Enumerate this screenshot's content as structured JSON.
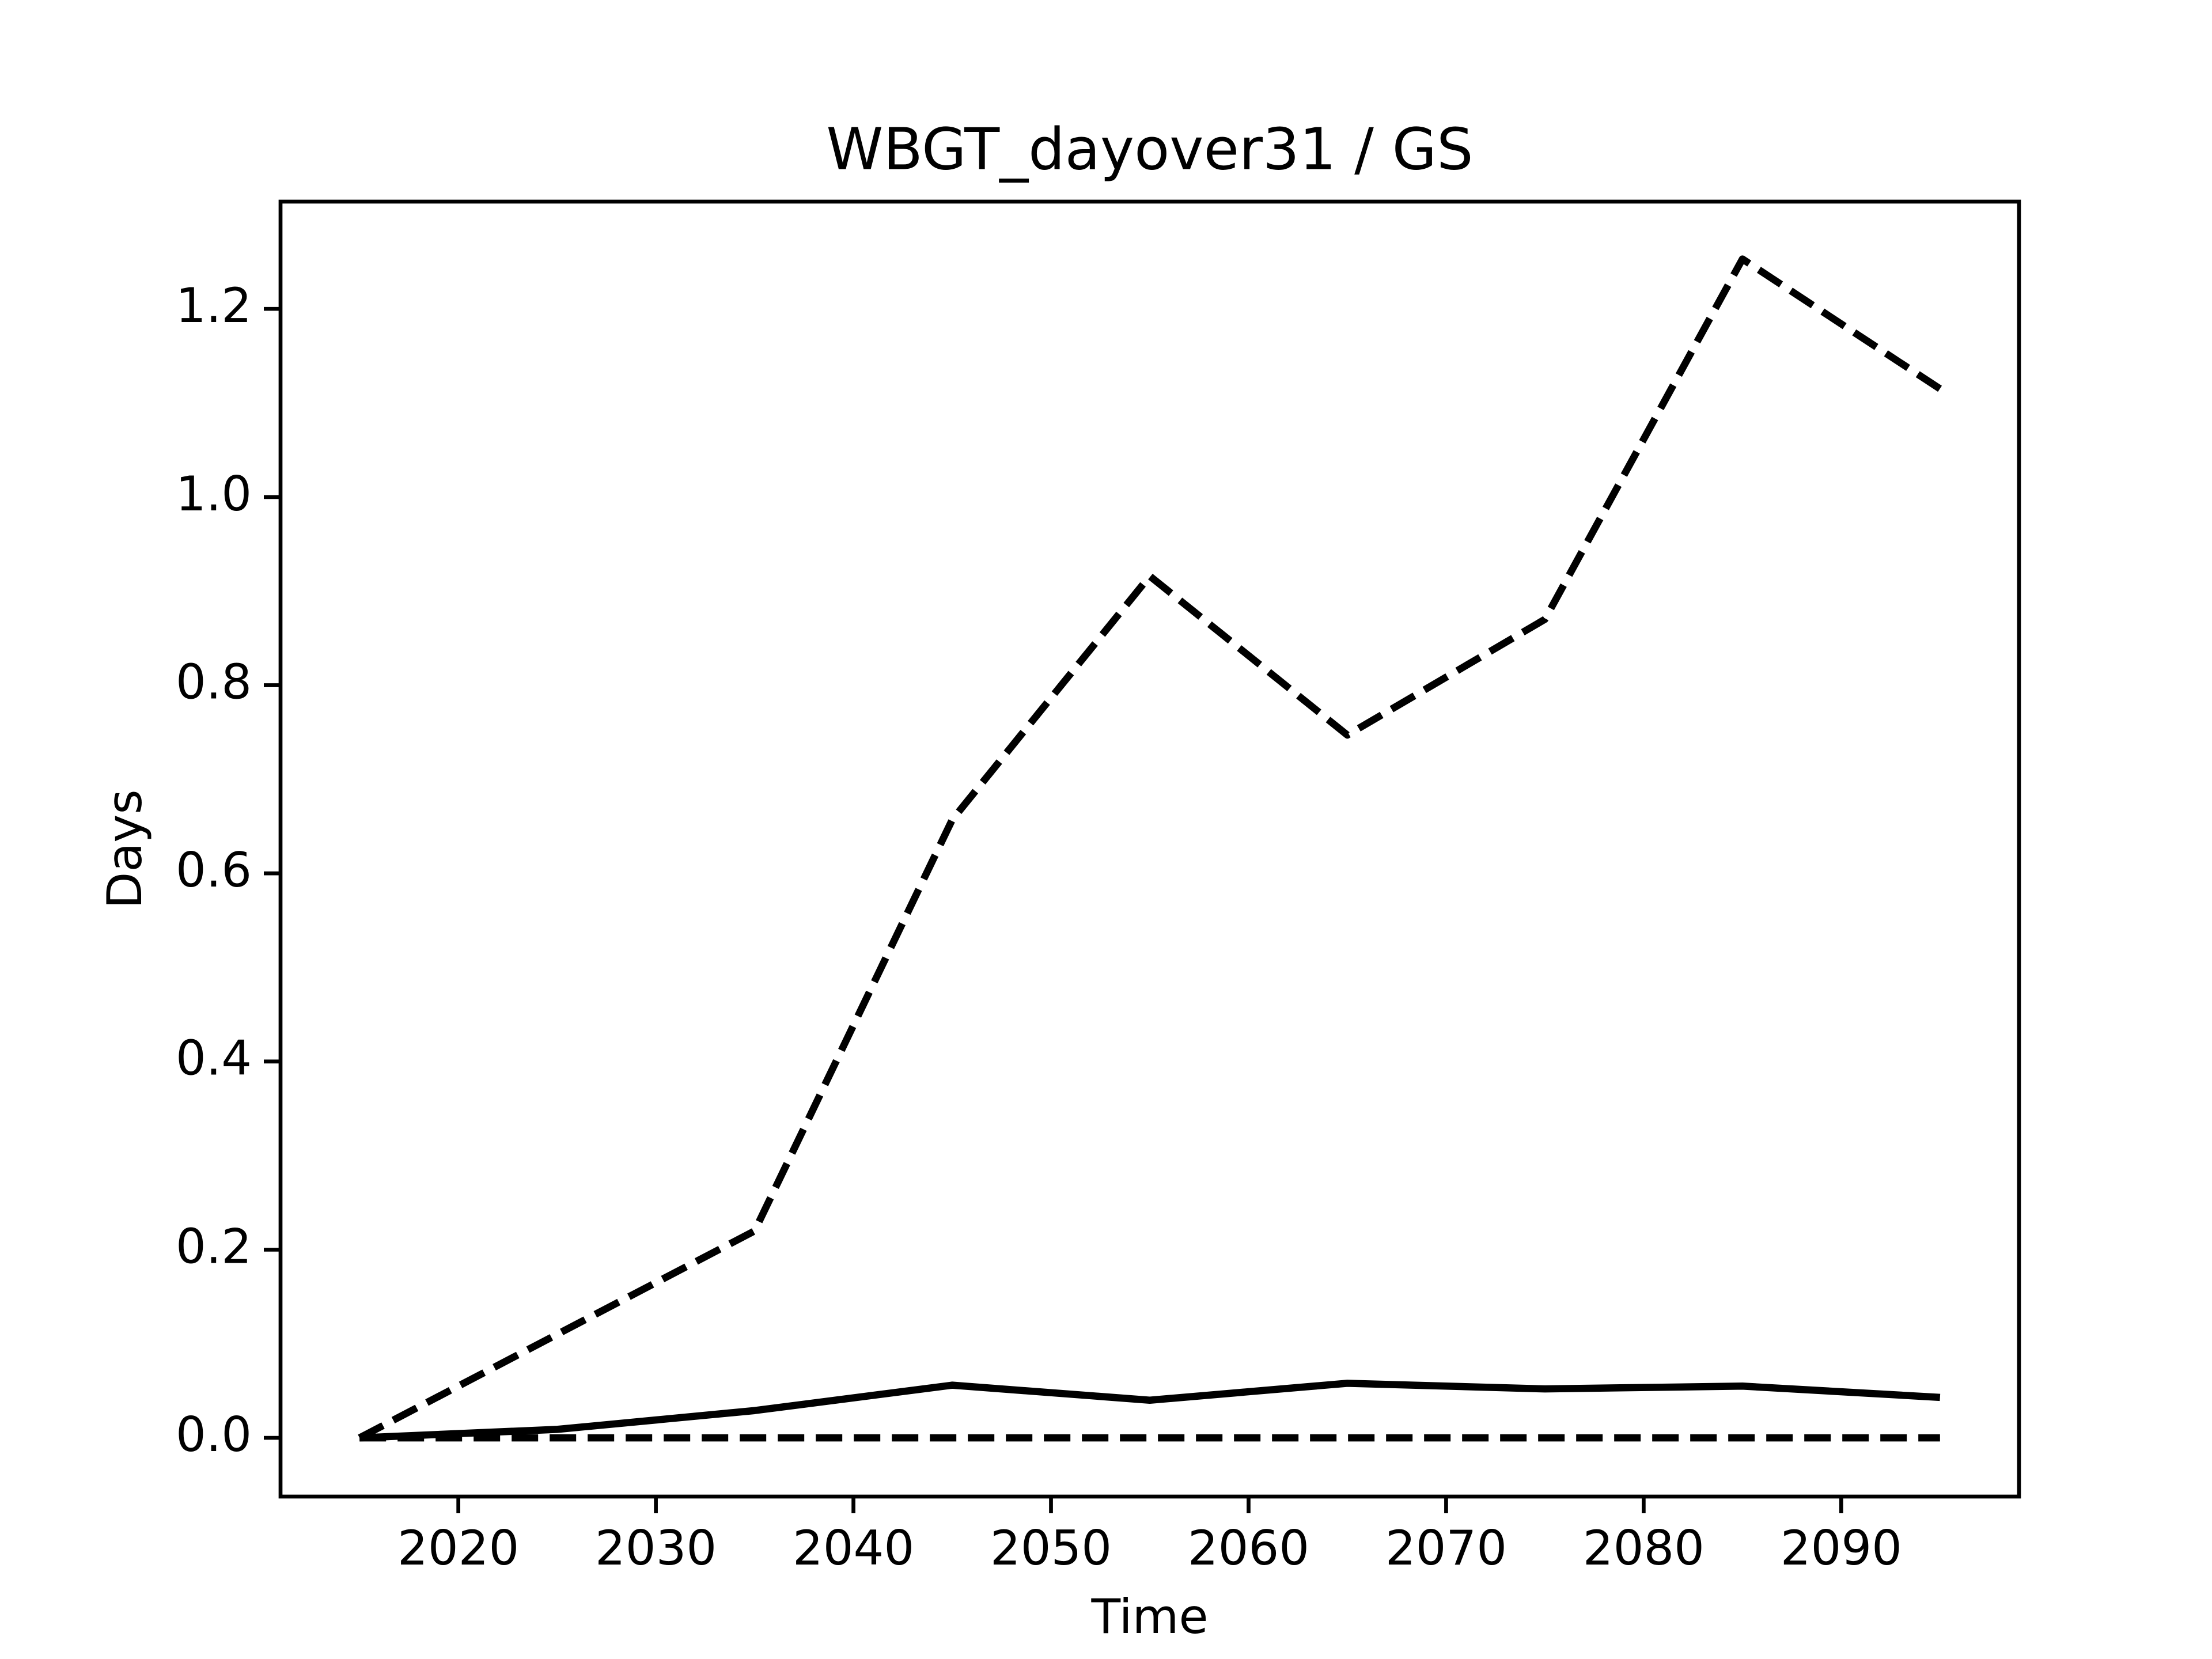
{
  "chart_data": {
    "type": "line",
    "title": "WBGT_dayover31 / GS",
    "xlabel": "Time",
    "ylabel": "Days",
    "x": [
      2015,
      2025,
      2035,
      2045,
      2055,
      2065,
      2075,
      2085,
      2095
    ],
    "series": [
      {
        "color": "#000000",
        "linestyle": "dashed",
        "values": [
          0,
          0.11,
          0.22,
          0.657,
          0.916,
          0.747,
          0.87,
          1.253,
          1.115
        ]
      },
      {
        "color": "#000000",
        "linestyle": "solid",
        "values": [
          0,
          0.009,
          0.029,
          0.056,
          0.04,
          0.058,
          0.052,
          0.055,
          0.043
        ]
      },
      {
        "color": "#000000",
        "linestyle": "dashed",
        "values": [
          0,
          0,
          0,
          0,
          0,
          0,
          0,
          0,
          0
        ]
      }
    ],
    "xlim": [
      2011,
      2099
    ],
    "ylim": [
      -0.0624,
      1.314
    ],
    "xticks": [
      2020,
      2030,
      2040,
      2050,
      2060,
      2070,
      2080,
      2090
    ],
    "yticks": [
      {
        "value": 0,
        "label": "0.0"
      },
      0.2,
      0.4,
      0.6,
      0.8,
      {
        "value": 1,
        "label": "1.0"
      },
      1.2
    ],
    "grid": false
  }
}
